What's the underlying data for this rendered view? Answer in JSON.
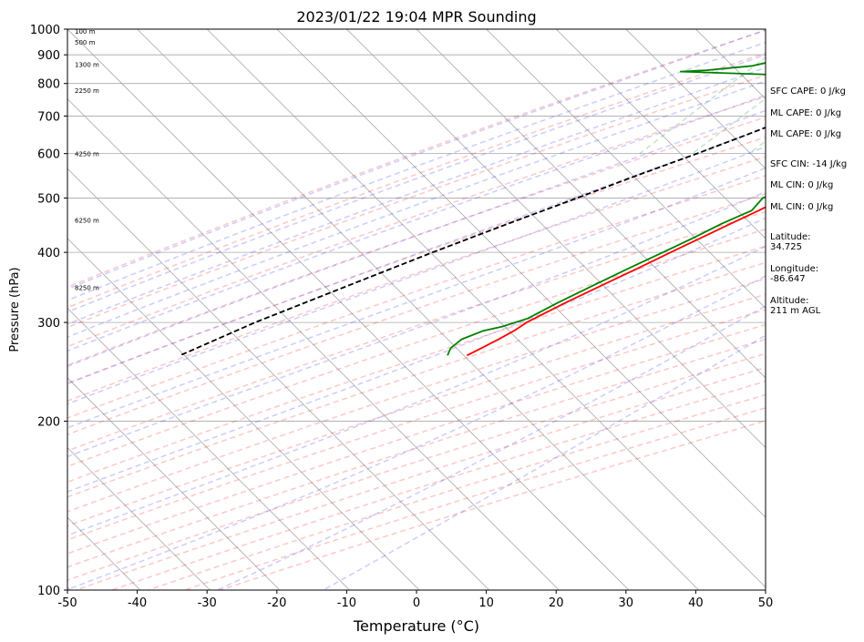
{
  "chart_data": {
    "type": "line",
    "subtype": "skew-T log-P sounding",
    "title": "2023/01/22 19:04 MPR Sounding",
    "xlabel": "Temperature (°C)",
    "ylabel": "Pressure (hPa)",
    "xlim": [
      -50,
      50
    ],
    "ylim": [
      1000,
      100
    ],
    "y_scale": "log",
    "x_ticks": [
      -50,
      -40,
      -30,
      -20,
      -10,
      0,
      10,
      20,
      30,
      40,
      50
    ],
    "y_ticks": [
      100,
      200,
      300,
      400,
      500,
      600,
      700,
      800,
      900,
      1000
    ],
    "grid": true,
    "height_labels": [
      {
        "label": "100 m",
        "pressure": 988
      },
      {
        "label": "500 m",
        "pressure": 945
      },
      {
        "label": "1300 m",
        "pressure": 862
      },
      {
        "label": "2250 m",
        "pressure": 775
      },
      {
        "label": "4250 m",
        "pressure": 598
      },
      {
        "label": "6250 m",
        "pressure": 455
      },
      {
        "label": "8250 m",
        "pressure": 345
      }
    ],
    "series": [
      {
        "role": "temperature",
        "color": "#ff0000",
        "points": [
          [
            1000,
            9.6
          ],
          [
            990,
            10.0
          ],
          [
            975,
            8.4
          ],
          [
            960,
            6.7
          ],
          [
            945,
            5.2
          ],
          [
            925,
            4.3
          ],
          [
            900,
            5.4
          ],
          [
            870,
            5.8
          ],
          [
            850,
            6.2
          ],
          [
            820,
            6.8
          ],
          [
            800,
            7.4
          ],
          [
            775,
            7.6
          ],
          [
            750,
            7.4
          ],
          [
            725,
            7.2
          ],
          [
            700,
            6.6
          ],
          [
            675,
            5.8
          ],
          [
            650,
            5.1
          ],
          [
            625,
            3.4
          ],
          [
            600,
            1.8
          ],
          [
            575,
            0.6
          ],
          [
            550,
            -0.8
          ],
          [
            525,
            -2.4
          ],
          [
            500,
            -3.6
          ],
          [
            475,
            -5.4
          ],
          [
            450,
            -7.5
          ],
          [
            425,
            -9.7
          ],
          [
            400,
            -12.0
          ],
          [
            375,
            -14.4
          ],
          [
            350,
            -17.1
          ],
          [
            325,
            -19.9
          ],
          [
            300,
            -22.6
          ],
          [
            290,
            -23.2
          ],
          [
            280,
            -24.2
          ],
          [
            270,
            -25.4
          ],
          [
            262,
            -26.4
          ]
        ]
      },
      {
        "role": "dewpoint",
        "color": "#008000",
        "points": [
          [
            1000,
            8.4
          ],
          [
            990,
            8.0
          ],
          [
            980,
            4.2
          ],
          [
            960,
            -3.0
          ],
          [
            940,
            -11.0
          ],
          [
            930,
            -16.5
          ],
          [
            925,
            -20.0
          ],
          [
            915,
            -20.2
          ],
          [
            905,
            -17.0
          ],
          [
            895,
            -20.2
          ],
          [
            880,
            -24.3
          ],
          [
            860,
            -27.0
          ],
          [
            845,
            -33.0
          ],
          [
            840,
            -36.5
          ],
          [
            830,
            -23.6
          ],
          [
            815,
            -15.5
          ],
          [
            805,
            -16.3
          ],
          [
            790,
            -16.4
          ],
          [
            775,
            -15.8
          ],
          [
            750,
            -15.3
          ],
          [
            725,
            -13.7
          ],
          [
            700,
            -11.6
          ],
          [
            675,
            -12.6
          ],
          [
            650,
            -12.5
          ],
          [
            625,
            -10.5
          ],
          [
            600,
            -6.4
          ],
          [
            575,
            -3.6
          ],
          [
            550,
            -4.8
          ],
          [
            525,
            -3.4
          ],
          [
            500,
            -6.6
          ],
          [
            475,
            -6.4
          ],
          [
            450,
            -8.8
          ],
          [
            425,
            -10.8
          ],
          [
            400,
            -13.1
          ],
          [
            375,
            -15.7
          ],
          [
            350,
            -18.3
          ],
          [
            325,
            -21.0
          ],
          [
            305,
            -23.0
          ],
          [
            295,
            -25.5
          ],
          [
            290,
            -27.6
          ],
          [
            280,
            -29.5
          ],
          [
            270,
            -29.8
          ],
          [
            262,
            -29.2
          ]
        ]
      },
      {
        "role": "parcel",
        "color": "#000000",
        "style": "dashed",
        "points": [
          [
            1000,
            8.5
          ],
          [
            975,
            6.7
          ],
          [
            950,
            4.7
          ],
          [
            925,
            2.6
          ],
          [
            900,
            0.5
          ],
          [
            875,
            -1.3
          ],
          [
            850,
            -2.9
          ],
          [
            825,
            -4.5
          ],
          [
            800,
            -6.2
          ],
          [
            775,
            -8.0
          ],
          [
            750,
            -9.8
          ],
          [
            725,
            -11.8
          ],
          [
            700,
            -13.7
          ],
          [
            650,
            -17.8
          ],
          [
            600,
            -22.4
          ],
          [
            550,
            -27.7
          ],
          [
            500,
            -33.2
          ],
          [
            450,
            -39.4
          ],
          [
            400,
            -46.1
          ],
          [
            350,
            -53.3
          ],
          [
            300,
            -61.5
          ],
          [
            262,
            -67.5
          ]
        ]
      }
    ]
  },
  "info_panel": {
    "sfc_cape": "SFC CAPE: 0 J/kg",
    "ml_cape_1": "ML CAPE: 0 J/kg",
    "ml_cape_2": "ML CAPE: 0 J/kg",
    "sfc_cin": "SFC CIN: -14 J/kg",
    "ml_cin_1": "ML CIN: 0 J/kg",
    "ml_cin_2": "ML CIN: 0 J/kg",
    "latitude_label": "Latitude:",
    "latitude_value": "34.725",
    "longitude_label": "Longitude:",
    "longitude_value": "-86.647",
    "altitude_label": "Altitude:",
    "altitude_value": "211 m AGL"
  }
}
